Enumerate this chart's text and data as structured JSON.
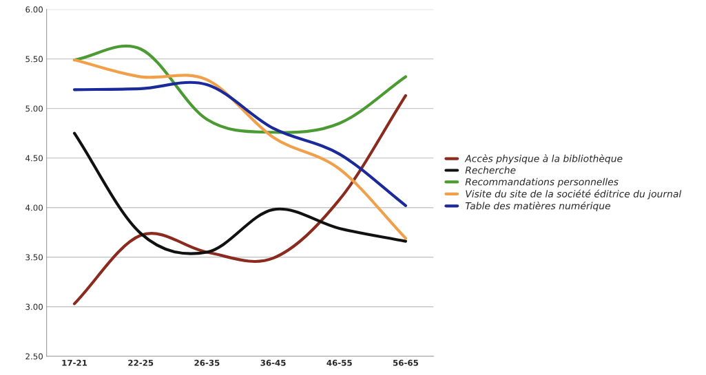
{
  "chart_data": {
    "type": "line",
    "categories": [
      "17-21",
      "22-25",
      "26-35",
      "36-45",
      "46-55",
      "56-65"
    ],
    "series": [
      {
        "name": "Accès physique à la bibliothèque",
        "color": "#8b2a1e",
        "values": [
          3.03,
          3.72,
          3.55,
          3.49,
          4.08,
          5.13
        ]
      },
      {
        "name": "Recherche",
        "color": "#111111",
        "values": [
          4.75,
          3.74,
          3.55,
          3.98,
          3.79,
          3.66
        ]
      },
      {
        "name": "Recommandations personnelles",
        "color": "#4b9a33",
        "values": [
          5.49,
          5.6,
          4.89,
          4.76,
          4.85,
          5.32
        ]
      },
      {
        "name": "Visite du site de la société éditrice du journal",
        "color": "#f0a04b",
        "values": [
          5.49,
          5.32,
          5.29,
          4.71,
          4.39,
          3.69
        ]
      },
      {
        "name": "Table des matières numérique",
        "color": "#1a2a9a",
        "values": [
          5.19,
          5.2,
          5.24,
          4.8,
          4.54,
          4.02
        ]
      }
    ],
    "ylim": [
      2.5,
      6.0
    ],
    "yticks": [
      {
        "value": 2.5,
        "label": "2.50"
      },
      {
        "value": 3.0,
        "label": "3.00"
      },
      {
        "value": 3.5,
        "label": "3.50"
      },
      {
        "value": 4.0,
        "label": "4.00"
      },
      {
        "value": 4.5,
        "label": "4.50"
      },
      {
        "value": 5.0,
        "label": "5.00"
      },
      {
        "value": 5.5,
        "label": "5.50"
      },
      {
        "value": 6.0,
        "label": "6.00"
      }
    ],
    "grid": "y",
    "legend": "right",
    "marker": "none",
    "line_style": "solid"
  }
}
